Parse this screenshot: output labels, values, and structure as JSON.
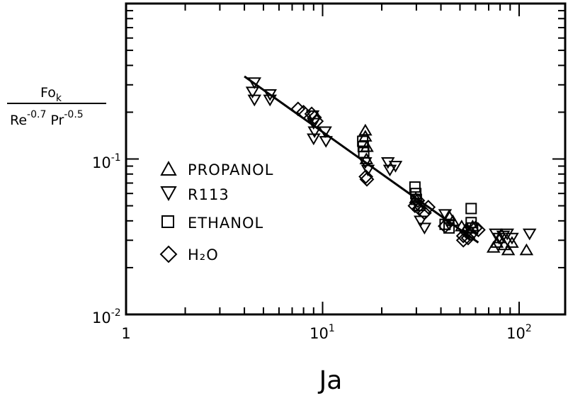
{
  "chart_data": {
    "type": "scatter",
    "x_scale": "log",
    "y_scale": "log",
    "xlim": [
      1,
      200
    ],
    "ylim": [
      0.01,
      1
    ],
    "x_ticks": [
      {
        "value": 1,
        "base": "1",
        "exp": ""
      },
      {
        "value": 10,
        "base": "10",
        "exp": "1"
      },
      {
        "value": 100,
        "base": "10",
        "exp": "2"
      }
    ],
    "y_ticks": [
      {
        "value": 0.1,
        "base": "10",
        "exp": "-1"
      },
      {
        "value": 0.01,
        "base": "10",
        "exp": "-2"
      }
    ],
    "xlabel": "Ja",
    "ylabel": {
      "numerator": "Fo",
      "numerator_sub": "k",
      "denominator_re": "Re",
      "denominator_re_exp": "-0.7",
      "denominator_pr": "Pr",
      "denominator_pr_exp": "-0.5"
    },
    "legend_placement": "left",
    "grid": false,
    "series": [
      {
        "name": "PROPANOL",
        "marker": "triangle-up",
        "points": [
          [
            16.5,
            0.153
          ],
          [
            16.5,
            0.14
          ],
          [
            16.8,
            0.12
          ],
          [
            16.7,
            0.1
          ],
          [
            29.8,
            0.056
          ],
          [
            31,
            0.05
          ],
          [
            44,
            0.043
          ],
          [
            46,
            0.04
          ],
          [
            51,
            0.037
          ],
          [
            54,
            0.036
          ],
          [
            58,
            0.037
          ],
          [
            74,
            0.027
          ],
          [
            77,
            0.029
          ],
          [
            80,
            0.031
          ],
          [
            84,
            0.028
          ],
          [
            88,
            0.026
          ],
          [
            92,
            0.029
          ],
          [
            109,
            0.026
          ]
        ]
      },
      {
        "name": "R113",
        "marker": "triangle-down",
        "points": [
          [
            4.5,
            0.31
          ],
          [
            4.4,
            0.27
          ],
          [
            4.5,
            0.24
          ],
          [
            5.4,
            0.26
          ],
          [
            5.4,
            0.24
          ],
          [
            8.9,
            0.19
          ],
          [
            9.0,
            0.17
          ],
          [
            9.1,
            0.15
          ],
          [
            9.0,
            0.135
          ],
          [
            10.3,
            0.15
          ],
          [
            10.4,
            0.13
          ],
          [
            16.5,
            0.095
          ],
          [
            17,
            0.085
          ],
          [
            21.5,
            0.095
          ],
          [
            22,
            0.085
          ],
          [
            23.5,
            0.09
          ],
          [
            30.5,
            0.05
          ],
          [
            31.5,
            0.04
          ],
          [
            33,
            0.036
          ],
          [
            42,
            0.044
          ],
          [
            44,
            0.038
          ],
          [
            76,
            0.033
          ],
          [
            79,
            0.031
          ],
          [
            83,
            0.032
          ],
          [
            87,
            0.033
          ],
          [
            92,
            0.031
          ],
          [
            113,
            0.033
          ]
        ]
      },
      {
        "name": "ETHANOL",
        "marker": "square",
        "points": [
          [
            16.0,
            0.13
          ],
          [
            16.1,
            0.12
          ],
          [
            16.2,
            0.11
          ],
          [
            29.5,
            0.066
          ],
          [
            29.8,
            0.06
          ],
          [
            30.0,
            0.055
          ],
          [
            42,
            0.038
          ],
          [
            44,
            0.036
          ],
          [
            57,
            0.048
          ],
          [
            57,
            0.039
          ],
          [
            58,
            0.036
          ]
        ]
      },
      {
        "name": "H₂O",
        "marker": "diamond",
        "points": [
          [
            7.5,
            0.21
          ],
          [
            8.0,
            0.2
          ],
          [
            8.8,
            0.195
          ],
          [
            9.1,
            0.185
          ],
          [
            9.3,
            0.175
          ],
          [
            16.6,
            0.077
          ],
          [
            16.8,
            0.074
          ],
          [
            29.5,
            0.05
          ],
          [
            30.5,
            0.054
          ],
          [
            31,
            0.048
          ],
          [
            33,
            0.045
          ],
          [
            34.5,
            0.049
          ],
          [
            42,
            0.037
          ],
          [
            52,
            0.032
          ],
          [
            54,
            0.034
          ],
          [
            57,
            0.033
          ],
          [
            60,
            0.036
          ],
          [
            62,
            0.035
          ],
          [
            52,
            0.03
          ],
          [
            55,
            0.031
          ]
        ]
      }
    ],
    "fit_line": {
      "x": [
        4.0,
        62
      ],
      "y": [
        0.34,
        0.029
      ]
    }
  }
}
